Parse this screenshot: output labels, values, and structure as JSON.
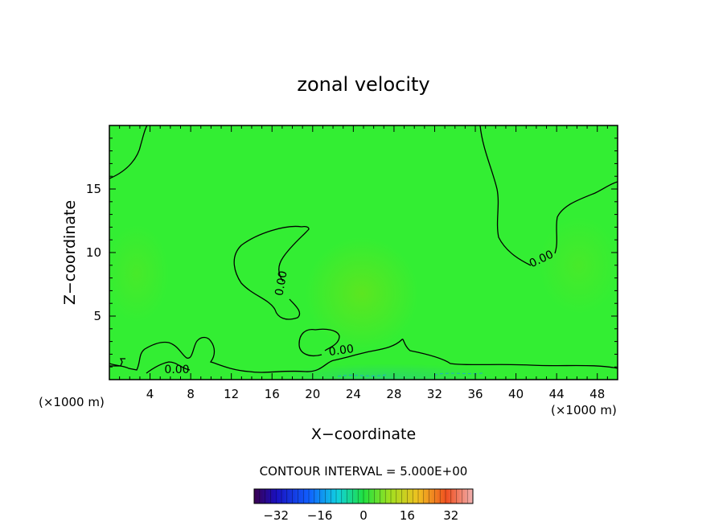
{
  "chart_data": {
    "type": "heatmap",
    "title": "zonal velocity",
    "xlabel": "X−coordinate",
    "ylabel": "Z−coordinate",
    "x_unit": "(×1000 m)",
    "z_unit": "(×1000 m)",
    "xlim": [
      0,
      50
    ],
    "ylim": [
      0,
      20
    ],
    "x_ticks": [
      4,
      8,
      12,
      16,
      20,
      24,
      28,
      32,
      36,
      40,
      44,
      48
    ],
    "y_ticks": [
      5,
      10,
      15
    ],
    "contour_interval_text": "CONTOUR INTERVAL = 5.000E+00",
    "contour_labels": [
      "0.00",
      "0.00",
      "0.00",
      "0.00"
    ],
    "colorbar": {
      "range": [
        -40,
        40
      ],
      "tick_values": [
        -32,
        -16,
        0,
        16,
        32
      ],
      "tick_labels": [
        "−32",
        "−16",
        "0",
        "16",
        "32"
      ]
    },
    "field_description_values": {
      "background_value": 3,
      "note": "velocity field near zero everywhere; slight negatives near ground at x 20-34"
    },
    "colors": {
      "field": "#33ee33",
      "field_dark": "#2bdc3a",
      "contour": "#000000"
    }
  }
}
